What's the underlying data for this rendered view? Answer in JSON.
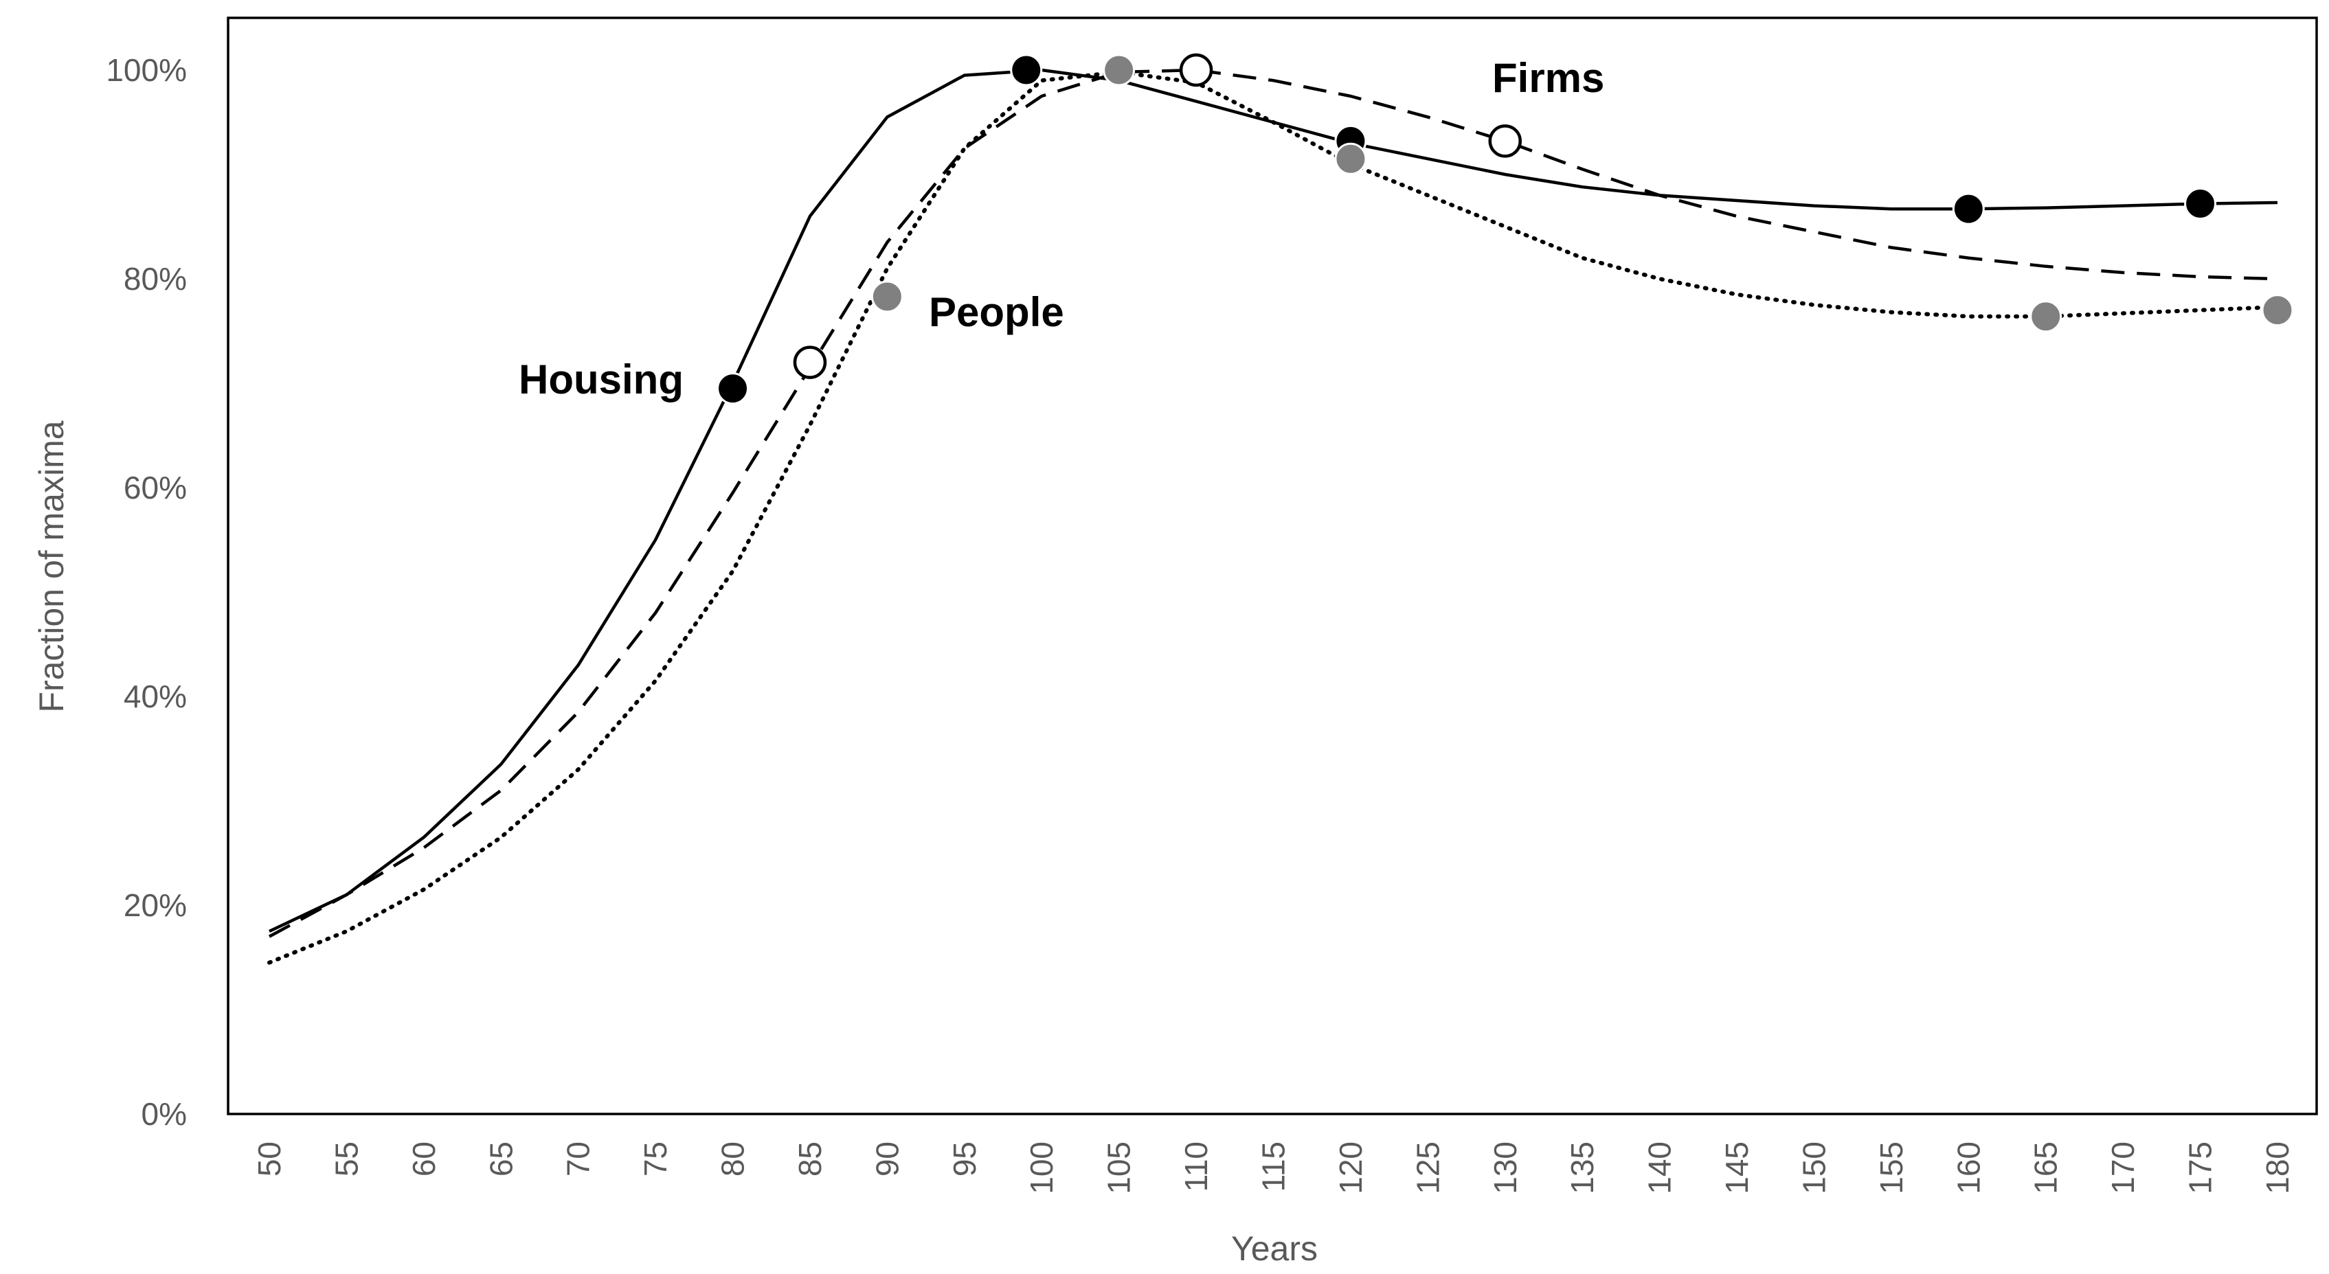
{
  "chart_data": {
    "type": "line",
    "title": "",
    "xlabel": "Years",
    "ylabel": "Fraction of maxima",
    "xlim": [
      50,
      180
    ],
    "ylim": [
      0,
      100
    ],
    "x_ticks": [
      "50",
      "55",
      "60",
      "65",
      "70",
      "75",
      "80",
      "85",
      "90",
      "95",
      "100",
      "105",
      "110",
      "115",
      "120",
      "125",
      "130",
      "135",
      "140",
      "145",
      "150",
      "155",
      "160",
      "165",
      "170",
      "175",
      "180"
    ],
    "y_ticks": [
      "0%",
      "20%",
      "40%",
      "60%",
      "80%",
      "100%"
    ],
    "grid": false,
    "series": [
      {
        "name": "Housing",
        "line_style": "solid",
        "marker_style": "filled-black",
        "color": "#000000",
        "x": [
          50,
          55,
          60,
          65,
          70,
          75,
          80,
          85,
          90,
          95,
          100,
          105,
          110,
          115,
          120,
          125,
          130,
          135,
          140,
          145,
          150,
          155,
          160,
          165,
          170,
          175,
          180
        ],
        "values": [
          17.5,
          21,
          26.5,
          33.5,
          43,
          55,
          70,
          86,
          95.5,
          99.5,
          100,
          99,
          97,
          95,
          93,
          91.5,
          90,
          88.8,
          88,
          87.5,
          87,
          86.7,
          86.7,
          86.8,
          87,
          87.2,
          87.3
        ],
        "markers": [
          {
            "x": 80,
            "y": 69.5
          },
          {
            "x": 99,
            "y": 100
          },
          {
            "x": 120,
            "y": 93.2
          },
          {
            "x": 160,
            "y": 86.7
          },
          {
            "x": 175,
            "y": 87.2
          }
        ]
      },
      {
        "name": "Firms",
        "line_style": "dashed",
        "marker_style": "open-circle",
        "color": "#000000",
        "x": [
          50,
          55,
          60,
          65,
          70,
          75,
          80,
          85,
          90,
          95,
          100,
          105,
          110,
          115,
          120,
          125,
          130,
          135,
          140,
          145,
          150,
          155,
          160,
          165,
          170,
          175,
          180
        ],
        "values": [
          17,
          21,
          25.5,
          31,
          38.5,
          48,
          59.5,
          71.5,
          83.5,
          92.5,
          97.5,
          99.8,
          100,
          99,
          97.5,
          95.5,
          93.2,
          90.5,
          88,
          86,
          84.5,
          83,
          82,
          81.2,
          80.6,
          80.2,
          80
        ],
        "markers": [
          {
            "x": 85,
            "y": 72
          },
          {
            "x": 110,
            "y": 100
          },
          {
            "x": 130,
            "y": 93.2
          }
        ]
      },
      {
        "name": "People",
        "line_style": "dotted",
        "marker_style": "filled-gray",
        "color": "#000000",
        "marker_color": "#808080",
        "x": [
          50,
          55,
          60,
          65,
          70,
          75,
          80,
          85,
          90,
          95,
          100,
          105,
          110,
          115,
          120,
          125,
          130,
          135,
          140,
          145,
          150,
          155,
          160,
          165,
          170,
          175,
          180
        ],
        "values": [
          14.5,
          17.5,
          21.5,
          26.5,
          33,
          41.5,
          52,
          66,
          81,
          92.5,
          99,
          99.8,
          98.8,
          95,
          91,
          88,
          85,
          82,
          80,
          78.5,
          77.5,
          76.8,
          76.4,
          76.4,
          76.7,
          77,
          77.3
        ],
        "markers": [
          {
            "x": 90,
            "y": 78.3
          },
          {
            "x": 105,
            "y": 100
          },
          {
            "x": 120,
            "y": 91.5
          },
          {
            "x": 165,
            "y": 76.4
          },
          {
            "x": 180,
            "y": 77
          }
        ]
      }
    ]
  },
  "labels": {
    "housing": "Housing",
    "people": "People",
    "firms": "Firms"
  },
  "colors": {
    "axis": "#000000",
    "tick_text": "#595959",
    "series": "#000000",
    "people_marker": "#808080"
  }
}
